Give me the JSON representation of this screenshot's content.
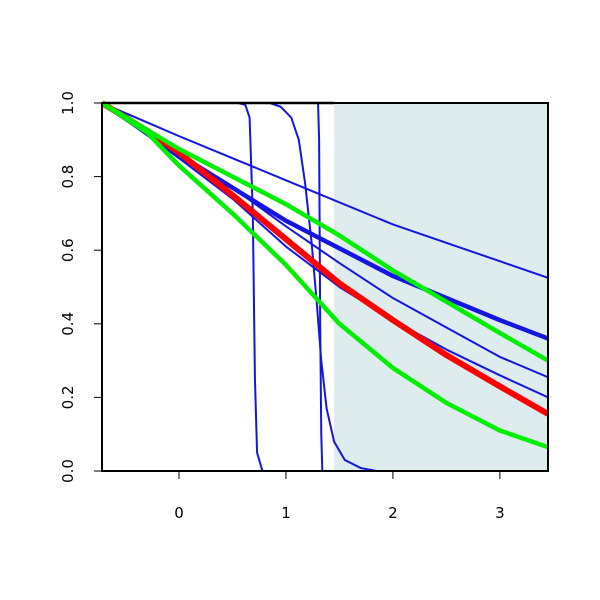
{
  "chart_data": {
    "type": "line",
    "title": "",
    "xlabel": "",
    "ylabel": "",
    "xlim": [
      -0.72,
      3.45
    ],
    "ylim": [
      0,
      1
    ],
    "x_ticks": [
      "0",
      "1",
      "2",
      "3"
    ],
    "y_ticks": [
      "0.0",
      "0.2",
      "0.4",
      "0.6",
      "0.8",
      "1.0"
    ],
    "grid": false,
    "legend": "none",
    "shaded_region": {
      "x_from": 1.45,
      "x_to": 3.45,
      "color": "#dfeced"
    },
    "colors": {
      "blue": "#1515e0",
      "red": "#ff0000",
      "green": "#00ee00",
      "shade": "#dfeced"
    },
    "series": [
      {
        "color": "#1515e0",
        "width": 2,
        "points": [
          [
            -0.72,
            1.0
          ],
          [
            0,
            0.91
          ],
          [
            1,
            0.79
          ],
          [
            2,
            0.67
          ],
          [
            3,
            0.57
          ],
          [
            3.45,
            0.525
          ]
        ]
      },
      {
        "color": "#1515e0",
        "width": 4.5,
        "points": [
          [
            -0.72,
            1.0
          ],
          [
            0,
            0.86
          ],
          [
            1,
            0.68
          ],
          [
            2,
            0.53
          ],
          [
            3,
            0.41
          ],
          [
            3.45,
            0.36
          ]
        ]
      },
      {
        "color": "#1515e0",
        "width": 2,
        "points": [
          [
            -0.72,
            1.0
          ],
          [
            0,
            0.85
          ],
          [
            0.5,
            0.77
          ],
          [
            1,
            0.665
          ],
          [
            1.5,
            0.565
          ],
          [
            2,
            0.47
          ],
          [
            2.5,
            0.39
          ],
          [
            3,
            0.31
          ],
          [
            3.45,
            0.255
          ]
        ]
      },
      {
        "color": "#1515e0",
        "width": 2,
        "points": [
          [
            -0.72,
            1.0
          ],
          [
            -0.3,
            0.92
          ],
          [
            0,
            0.85
          ],
          [
            0.5,
            0.74
          ],
          [
            1,
            0.61
          ],
          [
            1.5,
            0.5
          ],
          [
            2,
            0.41
          ],
          [
            2.5,
            0.33
          ],
          [
            3,
            0.26
          ],
          [
            3.45,
            0.2
          ]
        ]
      },
      {
        "color": "#1515e0",
        "width": 2,
        "points": [
          [
            -0.72,
            1.0
          ],
          [
            0.55,
            1.0
          ],
          [
            0.62,
            0.995
          ],
          [
            0.66,
            0.96
          ],
          [
            0.69,
            0.7
          ],
          [
            0.71,
            0.25
          ],
          [
            0.73,
            0.05
          ],
          [
            0.78,
            0.0
          ],
          [
            3.45,
            0.0
          ]
        ]
      },
      {
        "color": "#1515e0",
        "width": 2,
        "points": [
          [
            -0.72,
            1.0
          ],
          [
            0.85,
            1.0
          ],
          [
            0.95,
            0.99
          ],
          [
            1.05,
            0.96
          ],
          [
            1.12,
            0.9
          ],
          [
            1.18,
            0.78
          ],
          [
            1.24,
            0.62
          ],
          [
            1.29,
            0.45
          ],
          [
            1.33,
            0.3
          ],
          [
            1.38,
            0.17
          ],
          [
            1.45,
            0.08
          ],
          [
            1.55,
            0.03
          ],
          [
            1.7,
            0.008
          ],
          [
            1.85,
            0.0
          ],
          [
            3.45,
            0.0
          ]
        ]
      },
      {
        "color": "#1515e0",
        "width": 2,
        "points": [
          [
            -0.72,
            1.0
          ],
          [
            1.3,
            1.0
          ],
          [
            1.31,
            0.9
          ],
          [
            1.32,
            0.4
          ],
          [
            1.33,
            0.1
          ],
          [
            1.34,
            0.0
          ],
          [
            3.45,
            0.0
          ]
        ]
      },
      {
        "color": "#000000",
        "width": 2.5,
        "points": [
          [
            -0.72,
            1.0
          ],
          [
            1.45,
            1.0
          ]
        ]
      },
      {
        "color": "#ff0000",
        "width": 6,
        "points": [
          [
            -0.72,
            1.0
          ],
          [
            -0.3,
            0.925
          ],
          [
            0,
            0.865
          ],
          [
            0.5,
            0.75
          ],
          [
            1,
            0.63
          ],
          [
            1.5,
            0.51
          ],
          [
            2,
            0.41
          ],
          [
            2.5,
            0.315
          ],
          [
            3,
            0.23
          ],
          [
            3.45,
            0.155
          ]
        ]
      },
      {
        "color": "#00ee00",
        "width": 4.5,
        "points": [
          [
            -0.72,
            1.0
          ],
          [
            0,
            0.875
          ],
          [
            0.5,
            0.8
          ],
          [
            1,
            0.725
          ],
          [
            1.5,
            0.64
          ],
          [
            2,
            0.545
          ],
          [
            2.5,
            0.46
          ],
          [
            3,
            0.375
          ],
          [
            3.45,
            0.3
          ]
        ]
      },
      {
        "color": "#00ee00",
        "width": 4.5,
        "points": [
          [
            -0.72,
            1.0
          ],
          [
            -0.3,
            0.92
          ],
          [
            0,
            0.83
          ],
          [
            0.5,
            0.7
          ],
          [
            1,
            0.56
          ],
          [
            1.5,
            0.4
          ],
          [
            2,
            0.28
          ],
          [
            2.5,
            0.185
          ],
          [
            3,
            0.11
          ],
          [
            3.45,
            0.065
          ]
        ]
      }
    ]
  }
}
